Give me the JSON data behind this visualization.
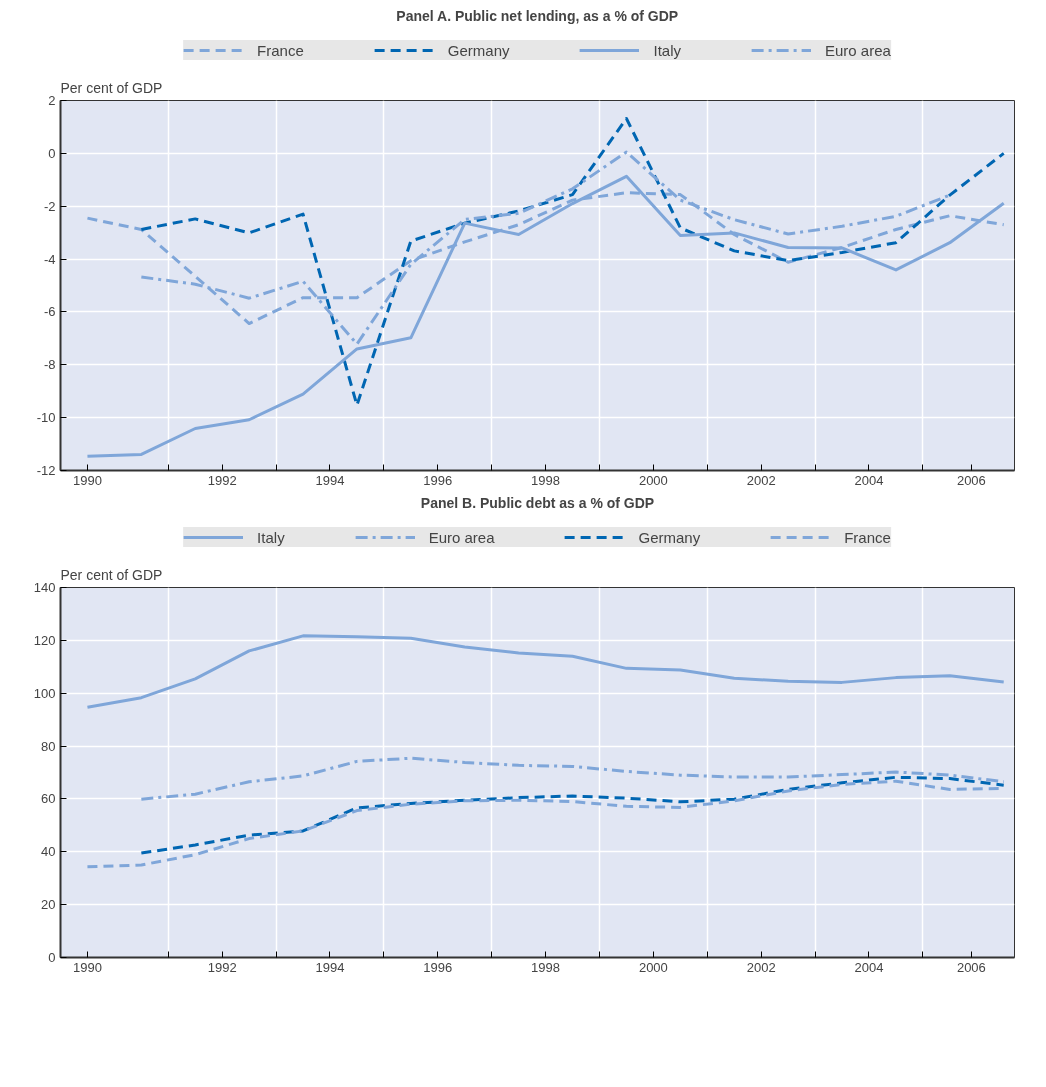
{
  "chart_data": [
    {
      "type": "line",
      "title": "Panel A. Public net lending, as a % of GDP",
      "ylabel": "Per cent of GDP",
      "legend": "top",
      "grid": true,
      "xlim": [
        1989.5,
        2007.2
      ],
      "ylim": [
        -12,
        2
      ],
      "yticks": [
        -12,
        -10,
        -8,
        -6,
        -4,
        -2,
        0,
        2
      ],
      "xticks": [
        {
          "value": 1990,
          "label": "1990"
        },
        {
          "value": 1991.5,
          "label": null
        },
        {
          "value": 1992.5,
          "label": "1992"
        },
        {
          "value": 1993.5,
          "label": null
        },
        {
          "value": 1994.5,
          "label": "1994"
        },
        {
          "value": 1995.5,
          "label": null
        },
        {
          "value": 1996.5,
          "label": "1996"
        },
        {
          "value": 1997.5,
          "label": null
        },
        {
          "value": 1998.5,
          "label": "1998"
        },
        {
          "value": 1999.5,
          "label": null
        },
        {
          "value": 2000.5,
          "label": "2000"
        },
        {
          "value": 2001.5,
          "label": null
        },
        {
          "value": 2002.5,
          "label": "2002"
        },
        {
          "value": 2003.5,
          "label": null
        },
        {
          "value": 2004.5,
          "label": "2004"
        },
        {
          "value": 2005.5,
          "label": null
        },
        {
          "value": 2006.4,
          "label": "2006"
        }
      ],
      "series": [
        {
          "name": "France",
          "color": "#7fa6d9",
          "line_style": "dashed",
          "x": [
            1990,
            1991,
            1992,
            1993,
            1994,
            1995,
            1996,
            1997,
            1998,
            1999,
            2000,
            2001,
            2002,
            2003,
            2004,
            2005,
            2006,
            2007
          ],
          "values": [
            -2.45,
            -2.88,
            -4.65,
            -6.44,
            -5.46,
            -5.46,
            -4.06,
            -3.35,
            -2.7,
            -1.77,
            -1.49,
            -1.56,
            -3.07,
            -4.12,
            -3.56,
            -2.88,
            -2.36,
            -2.7
          ]
        },
        {
          "name": "Germany",
          "color": "#0066b2",
          "line_style": "dashed",
          "x": [
            1991,
            1992,
            1993,
            1994,
            1995,
            1996,
            1997,
            1998,
            1999,
            2000,
            2001,
            2002,
            2003,
            2004,
            2005,
            2006,
            2007
          ],
          "values": [
            -2.88,
            -2.48,
            -3.01,
            -2.3,
            -9.53,
            -3.32,
            -2.64,
            -2.18,
            -1.56,
            1.32,
            -2.82,
            -3.69,
            -4.06,
            -3.75,
            -3.38,
            -1.58,
            0.0
          ]
        },
        {
          "name": "Italy",
          "color": "#7fa6d9",
          "line_style": "solid",
          "x": [
            1990,
            1991,
            1992,
            1993,
            1994,
            1995,
            1996,
            1997,
            1998,
            1999,
            2000,
            2001,
            2002,
            2003,
            2004,
            2005,
            2006,
            2007
          ],
          "values": [
            -11.46,
            -11.39,
            -10.41,
            -10.08,
            -9.11,
            -7.4,
            -6.98,
            -2.64,
            -3.07,
            -1.9,
            -0.87,
            -3.11,
            -3.01,
            -3.56,
            -3.58,
            -4.41,
            -3.38,
            -1.89
          ]
        },
        {
          "name": "Euro area",
          "color": "#7fa6d9",
          "line_style": "dashdot",
          "x": [
            1991,
            1992,
            1993,
            1994,
            1995,
            1996,
            1997,
            1998,
            1999,
            2000,
            2001,
            2002,
            2003,
            2004,
            2005,
            2006
          ],
          "values": [
            -4.68,
            -4.95,
            -5.48,
            -4.84,
            -7.22,
            -4.2,
            -2.5,
            -2.27,
            -1.34,
            0.05,
            -1.77,
            -2.51,
            -3.05,
            -2.76,
            -2.38,
            -1.58
          ]
        }
      ]
    },
    {
      "type": "line",
      "title": "Panel B. Public debt as a % of GDP",
      "ylabel": "Per cent of GDP",
      "legend": "top",
      "grid": true,
      "xlim": [
        1989.5,
        2007.2
      ],
      "ylim": [
        0,
        140
      ],
      "yticks": [
        0,
        20,
        40,
        60,
        80,
        100,
        120,
        140
      ],
      "xticks": [
        {
          "value": 1990,
          "label": "1990"
        },
        {
          "value": 1991.5,
          "label": null
        },
        {
          "value": 1992.5,
          "label": "1992"
        },
        {
          "value": 1993.5,
          "label": null
        },
        {
          "value": 1994.5,
          "label": "1994"
        },
        {
          "value": 1995.5,
          "label": null
        },
        {
          "value": 1996.5,
          "label": "1996"
        },
        {
          "value": 1997.5,
          "label": null
        },
        {
          "value": 1998.5,
          "label": "1998"
        },
        {
          "value": 1999.5,
          "label": null
        },
        {
          "value": 2000.5,
          "label": "2000"
        },
        {
          "value": 2001.5,
          "label": null
        },
        {
          "value": 2002.5,
          "label": "2002"
        },
        {
          "value": 2003.5,
          "label": null
        },
        {
          "value": 2004.5,
          "label": "2004"
        },
        {
          "value": 2005.5,
          "label": null
        },
        {
          "value": 2006.4,
          "label": "2006"
        }
      ],
      "series": [
        {
          "name": "Italy",
          "color": "#7fa6d9",
          "line_style": "solid",
          "x": [
            1990,
            1991,
            1992,
            1993,
            1994,
            1995,
            1996,
            1997,
            1998,
            1999,
            2000,
            2001,
            2002,
            2003,
            2004,
            2005,
            2006,
            2007
          ],
          "values": [
            94.7,
            98.3,
            105.4,
            116.0,
            121.7,
            121.4,
            120.8,
            117.5,
            115.2,
            114.0,
            109.4,
            108.8,
            105.7,
            104.5,
            104.1,
            105.9,
            106.6,
            104.2
          ]
        },
        {
          "name": "Euro area",
          "color": "#7fa6d9",
          "line_style": "dashdot",
          "x": [
            1991,
            1992,
            1993,
            1994,
            1995,
            1996,
            1997,
            1998,
            1999,
            2000,
            2001,
            2002,
            2003,
            2004,
            2005,
            2006,
            2007
          ],
          "values": [
            59.9,
            61.8,
            66.5,
            68.7,
            74.2,
            75.4,
            73.8,
            72.7,
            72.3,
            70.4,
            69.0,
            68.3,
            68.3,
            69.2,
            70.2,
            69.0,
            66.5
          ]
        },
        {
          "name": "Germany",
          "color": "#0066b2",
          "line_style": "dashed",
          "x": [
            1991,
            1992,
            1993,
            1994,
            1995,
            1996,
            1997,
            1998,
            1999,
            2000,
            2001,
            2002,
            2003,
            2004,
            2005,
            2006,
            2007
          ],
          "values": [
            39.5,
            42.6,
            46.3,
            47.9,
            56.6,
            58.3,
            59.5,
            60.5,
            61.1,
            60.3,
            58.9,
            59.9,
            63.6,
            66.1,
            68.2,
            67.7,
            65.2
          ]
        },
        {
          "name": "France",
          "color": "#7fa6d9",
          "line_style": "dashed",
          "x": [
            1990,
            1991,
            1992,
            1993,
            1994,
            1995,
            1996,
            1997,
            1998,
            1999,
            2000,
            2001,
            2002,
            2003,
            2004,
            2005,
            2006,
            2007
          ],
          "values": [
            34.3,
            35.0,
            38.9,
            45.0,
            47.9,
            55.6,
            58.0,
            59.3,
            59.5,
            59.0,
            57.2,
            56.8,
            59.3,
            63.0,
            65.5,
            66.7,
            63.6,
            64.0
          ]
        }
      ]
    }
  ]
}
